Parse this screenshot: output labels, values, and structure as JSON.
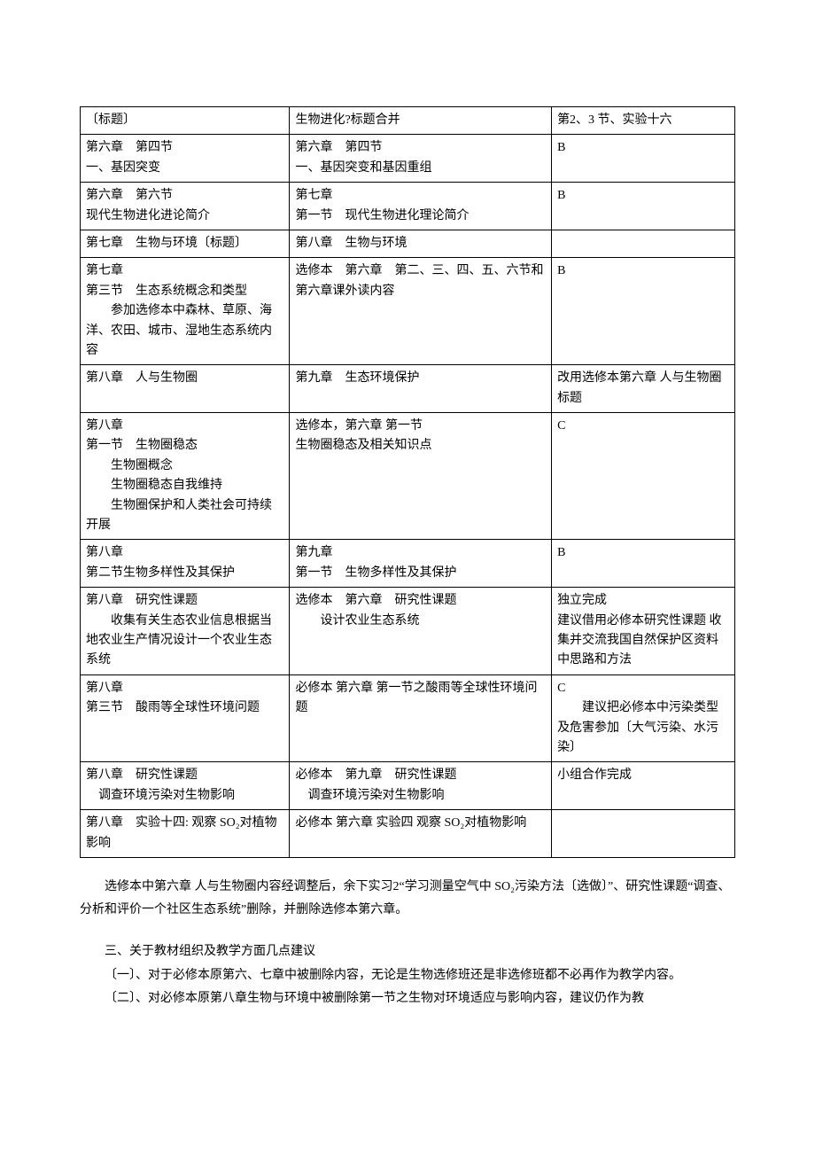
{
  "table": {
    "columns": [
      {
        "width_pct": 32
      },
      {
        "width_pct": 40
      },
      {
        "width_pct": 28
      }
    ],
    "rows": [
      {
        "c1": "〔标题〕",
        "c2": "生物进化?标题合并",
        "c3": "第2、3 节、实验十六"
      },
      {
        "c1": "第六章　第四节\n一、基因突变",
        "c2": "第六章　第四节\n一、基因突变和基因重组",
        "c3": "B"
      },
      {
        "c1": "第六章　第六节\n现代生物进化进论简介",
        "c2": "第七章\n第一节　现代生物进化理论简介",
        "c3": "B"
      },
      {
        "c1": "第七章　生物与环境〔标题〕",
        "c2": "第八章　生物与环境",
        "c3": ""
      },
      {
        "c1": "第七章\n第三节　生态系统概念和类型\n　　参加选修本中森林、草原、海洋、农田、城市、湿地生态系统内容",
        "c2": "选修本　第六章　第二、三、四、五、六节和第六章课外读内容",
        "c3": "B"
      },
      {
        "c1": "第八章　人与生物圈",
        "c2": "第九章　生态环境保护",
        "c3": "改用选修本第六章 人与生物圈标题"
      },
      {
        "c1": "第八章\n第一节　生物圈稳态\n　　生物圈概念\n　　生物圈稳态自我维持\n　　生物圈保护和人类社会可持续开展",
        "c2": "选修本，第六章 第一节\n生物圈稳态及相关知识点",
        "c3": "C"
      },
      {
        "c1": "第八章\n第二节生物多样性及其保护",
        "c2": "第九章\n第一节　生物多样性及其保护",
        "c3": "B"
      },
      {
        "c1": "第八章　研究性课题\n　　收集有关生态农业信息根据当地农业生产情况设计一个农业生态系统",
        "c2": "选修本　第六章　研究性课题\n　　设计农业生态系统",
        "c3": "独立完成\n建议借用必修本研究性课题 收集并交流我国自然保护区资料中思路和方法"
      },
      {
        "c1": "第八章\n 第三节　酸雨等全球性环境问题",
        "c2": "必修本 第六章 第一节之酸雨等全球性环境问题",
        "c3": "C\n　　建议把必修本中污染类型及危害参加〔大气污染、水污染〕",
        "c3_justify_line": 2
      },
      {
        "c1": "第八章　研究性课题\n　调查环境污染对生物影响",
        "c2": "必修本　第九章　研究性课题\n　调查环境污染对生物影响",
        "c3": "小组合作完成"
      },
      {
        "c1": "第八章　实验十四: 观察 SO₂对植物影响",
        "c2": "必修本 第六章 实验四 观察 SO₂对植物影响",
        "c3": ""
      }
    ]
  },
  "paragraphs": [
    {
      "text": "选修本中第六章 人与生物圈内容经调整后，余下实习2“学习测量空气中 SO₂污染方法〔选做〕”、研究性课题“调查、分析和评价一个社区生态系统”删除，并删除选修本第六章。",
      "indent": true
    },
    {
      "text": "",
      "spacer": true
    },
    {
      "text": "三、关于教材组织及教学方面几点建议",
      "indent": true
    },
    {
      "text": "〔一〕、对于必修本原第六、七章中被删除内容，无论是生物选修班还是非选修班都不必再作为教学内容。",
      "indent": true,
      "hang": true
    },
    {
      "text": "〔二〕、对必修本原第八章生物与环境中被删除第一节之生物对环境适应与影响内容，建议仍作为教",
      "indent": true,
      "hang": true
    }
  ]
}
